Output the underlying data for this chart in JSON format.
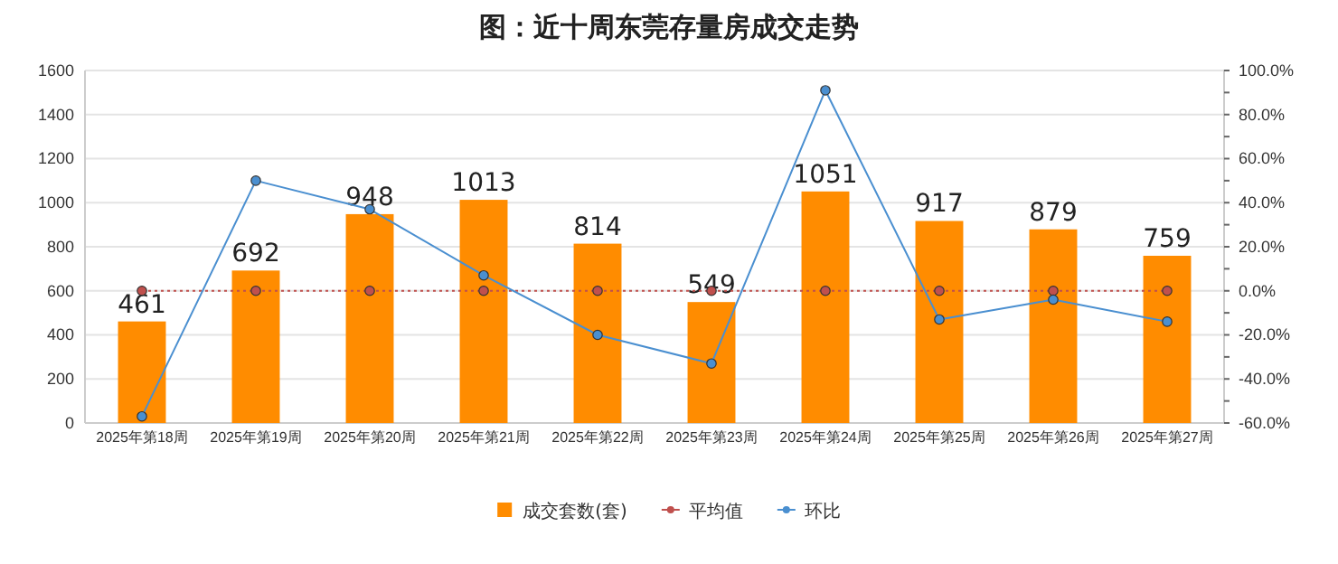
{
  "chart_data": {
    "type": "bar",
    "title": "图：近十周东莞存量房成交走势",
    "categories": [
      "2025年第18周",
      "2025年第19周",
      "2025年第20周",
      "2025年第21周",
      "2025年第22周",
      "2025年第23周",
      "2025年第24周",
      "2025年第25周",
      "2025年第26周",
      "2025年第27周"
    ],
    "series": [
      {
        "name": "成交套数(套)",
        "color": "#ff8c00",
        "values": [
          461,
          692,
          948,
          1013,
          814,
          549,
          1051,
          917,
          879,
          759
        ],
        "value_labels": [
          "461",
          "692",
          "948",
          "1013",
          "814",
          "549",
          "1051",
          "917",
          "879",
          "759"
        ]
      },
      {
        "name": "平均值",
        "type": "line",
        "axis": "y2",
        "color": "#c0504d",
        "line_style": "dotted",
        "marker": "circle",
        "values": [
          0,
          0,
          0,
          0,
          0,
          0,
          0,
          0,
          0,
          0
        ]
      },
      {
        "name": "环比",
        "type": "line",
        "axis": "y2",
        "color": "#4a8fd0",
        "line_style": "solid",
        "marker": "circle",
        "values": [
          -57,
          50,
          37,
          7,
          -20,
          -33,
          91,
          -13,
          -4,
          -14
        ]
      }
    ],
    "ylim": [
      0,
      1600
    ],
    "yticks": [
      0,
      200,
      400,
      600,
      800,
      1000,
      1200,
      1400,
      1600
    ],
    "y2lim": [
      -60,
      100
    ],
    "y2ticks": [
      {
        "value": -60,
        "label": "-60.0%"
      },
      {
        "value": -50,
        "label": null
      },
      {
        "value": -40,
        "label": "-40.0%"
      },
      {
        "value": -30,
        "label": null
      },
      {
        "value": -20,
        "label": "-20.0%"
      },
      {
        "value": -10,
        "label": null
      },
      {
        "value": 0,
        "label": "0.0%"
      },
      {
        "value": 10,
        "label": null
      },
      {
        "value": 20,
        "label": "20.0%"
      },
      {
        "value": 30,
        "label": null
      },
      {
        "value": 40,
        "label": "40.0%"
      },
      {
        "value": 50,
        "label": null
      },
      {
        "value": 60,
        "label": "60.0%"
      },
      {
        "value": 70,
        "label": null
      },
      {
        "value": 80,
        "label": "80.0%"
      },
      {
        "value": 90,
        "label": null
      },
      {
        "value": 100,
        "label": "100.0%"
      }
    ],
    "grid": "y",
    "legend": "bottom"
  }
}
